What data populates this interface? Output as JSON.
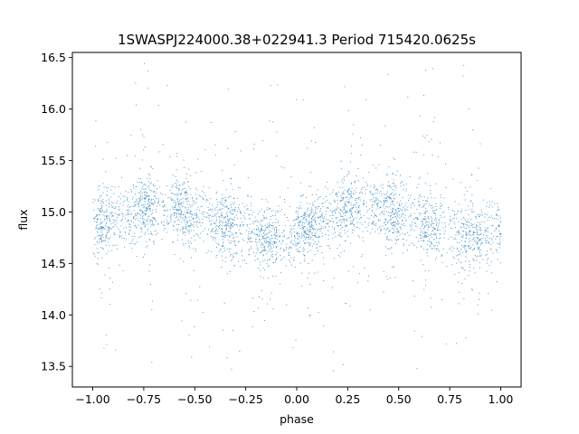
{
  "chart_data": {
    "type": "scatter",
    "title": "1SWASPJ224000.38+022941.3 Period 715420.0625s",
    "xlabel": "phase",
    "ylabel": "flux",
    "xlim": [
      -1.1,
      1.1
    ],
    "ylim": [
      13.3,
      16.55
    ],
    "x_ticks": [
      -1.0,
      -0.75,
      -0.5,
      -0.25,
      0.0,
      0.25,
      0.5,
      0.75,
      1.0
    ],
    "x_tick_labels": [
      "−1.00",
      "−0.75",
      "−0.50",
      "−0.25",
      "0.00",
      "0.25",
      "0.50",
      "0.75",
      "1.00"
    ],
    "y_ticks": [
      13.5,
      14.0,
      14.5,
      15.0,
      15.5,
      16.0,
      16.5
    ],
    "y_tick_labels": [
      "13.5",
      "14.0",
      "14.5",
      "15.0",
      "15.5",
      "16.0",
      "16.5"
    ],
    "grid": false,
    "legend": "none",
    "marker_color": "#1f77b4",
    "series": [
      {
        "phase_range": [
          -1.0,
          1.0
        ],
        "typical_flux_range": [
          14.5,
          15.3
        ],
        "extreme_flux_range": [
          13.45,
          16.45
        ],
        "phase_profile": [
          {
            "phase": -1.0,
            "flux_center": 14.9
          },
          {
            "phase": -0.9,
            "flux_center": 14.95
          },
          {
            "phase": -0.75,
            "flux_center": 15.05
          },
          {
            "phase": -0.6,
            "flux_center": 15.05
          },
          {
            "phase": -0.45,
            "flux_center": 14.95
          },
          {
            "phase": -0.3,
            "flux_center": 14.85
          },
          {
            "phase": -0.18,
            "flux_center": 14.78
          },
          {
            "phase": -0.05,
            "flux_center": 14.75
          },
          {
            "phase": 0.05,
            "flux_center": 14.85
          },
          {
            "phase": 0.15,
            "flux_center": 14.95
          },
          {
            "phase": 0.25,
            "flux_center": 15.05
          },
          {
            "phase": 0.4,
            "flux_center": 15.05
          },
          {
            "phase": 0.55,
            "flux_center": 14.95
          },
          {
            "phase": 0.7,
            "flux_center": 14.85
          },
          {
            "phase": 0.82,
            "flux_center": 14.78
          },
          {
            "phase": 0.95,
            "flux_center": 14.8
          },
          {
            "phase": 1.0,
            "flux_center": 14.85
          }
        ]
      }
    ]
  }
}
